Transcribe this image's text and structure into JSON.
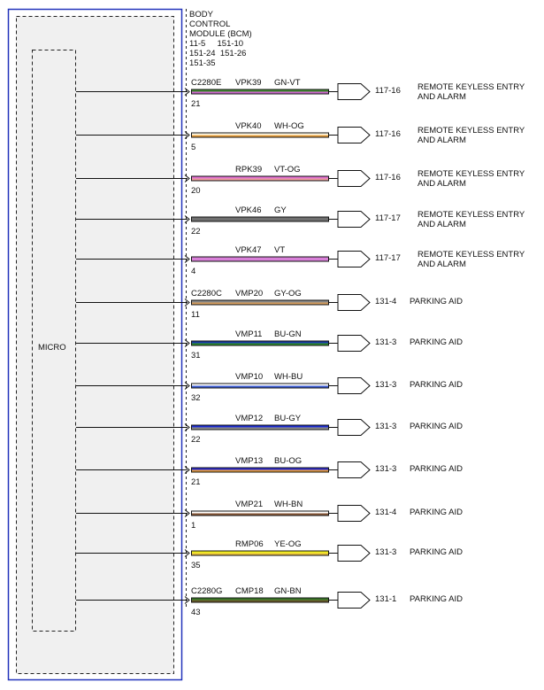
{
  "module": {
    "title_lines": [
      "BODY",
      "CONTROL",
      "MODULE (BCM)"
    ],
    "ref_lines": [
      "11-5     151-10",
      "151-24  151-26",
      "151-35"
    ],
    "micro_label": "MICRO"
  },
  "circuits": [
    {
      "connector": "C2280E",
      "circuit": "VPK39",
      "wire_color": "GN-VT",
      "pin": "21",
      "ref": "117-16",
      "dest": [
        "REMOTE KEYLESS ENTRY",
        "AND ALARM"
      ],
      "colors": [
        "#3e8a2e",
        "#cc66cc"
      ]
    },
    {
      "connector": "",
      "circuit": "VPK40",
      "wire_color": "WH-OG",
      "pin": "5",
      "ref": "117-16",
      "dest": [
        "REMOTE KEYLESS ENTRY",
        "AND ALARM"
      ],
      "colors": [
        "#fffbe8",
        "#e8a040"
      ]
    },
    {
      "connector": "",
      "circuit": "RPK39",
      "wire_color": "VT-OG",
      "pin": "20",
      "ref": "117-16",
      "dest": [
        "REMOTE KEYLESS ENTRY",
        "AND ALARM"
      ],
      "colors": [
        "#e070d0",
        "#f0a0a0"
      ]
    },
    {
      "connector": "",
      "circuit": "VPK46",
      "wire_color": "GY",
      "pin": "22",
      "ref": "117-17",
      "dest": [
        "REMOTE KEYLESS ENTRY",
        "AND ALARM"
      ],
      "colors": [
        "#707070",
        "#707070"
      ]
    },
    {
      "connector": "",
      "circuit": "VPK47",
      "wire_color": "VT",
      "pin": "4",
      "ref": "117-17",
      "dest": [
        "REMOTE KEYLESS ENTRY",
        "AND ALARM"
      ],
      "colors": [
        "#d880d8",
        "#d880d8"
      ]
    },
    {
      "connector": "C2280C",
      "circuit": "VMP20",
      "wire_color": "GY-OG",
      "pin": "11",
      "ref": "131-4",
      "dest": [
        "PARKING AID"
      ],
      "colors": [
        "#8a8a8a",
        "#d8a060"
      ]
    },
    {
      "connector": "",
      "circuit": "VMP11",
      "wire_color": "BU-GN",
      "pin": "31",
      "ref": "131-3",
      "dest": [
        "PARKING AID"
      ],
      "colors": [
        "#1a3aa8",
        "#2e8a2e"
      ]
    },
    {
      "connector": "",
      "circuit": "VMP10",
      "wire_color": "WH-BU",
      "pin": "32",
      "ref": "131-3",
      "dest": [
        "PARKING AID"
      ],
      "colors": [
        "#ffffff",
        "#3a5ad0"
      ]
    },
    {
      "connector": "",
      "circuit": "VMP12",
      "wire_color": "BU-GY",
      "pin": "22",
      "ref": "131-3",
      "dest": [
        "PARKING AID"
      ],
      "colors": [
        "#1a2ad0",
        "#909090"
      ]
    },
    {
      "connector": "",
      "circuit": "VMP13",
      "wire_color": "BU-OG",
      "pin": "21",
      "ref": "131-3",
      "dest": [
        "PARKING AID"
      ],
      "colors": [
        "#2a2ad0",
        "#e8a040"
      ]
    },
    {
      "connector": "",
      "circuit": "VMP21",
      "wire_color": "WH-BN",
      "pin": "1",
      "ref": "131-4",
      "dest": [
        "PARKING AID"
      ],
      "colors": [
        "#ffffff",
        "#8a5a3a"
      ]
    },
    {
      "connector": "",
      "circuit": "RMP06",
      "wire_color": "YE-OG",
      "pin": "35",
      "ref": "131-3",
      "dest": [
        "PARKING AID"
      ],
      "colors": [
        "#f0f020",
        "#e8c040"
      ]
    },
    {
      "connector": "C2280G",
      "circuit": "CMP18",
      "wire_color": "GN-BN",
      "pin": "43",
      "ref": "131-1",
      "dest": [
        "PARKING AID"
      ],
      "colors": [
        "#3a7a2a",
        "#6a5a2a"
      ]
    }
  ]
}
